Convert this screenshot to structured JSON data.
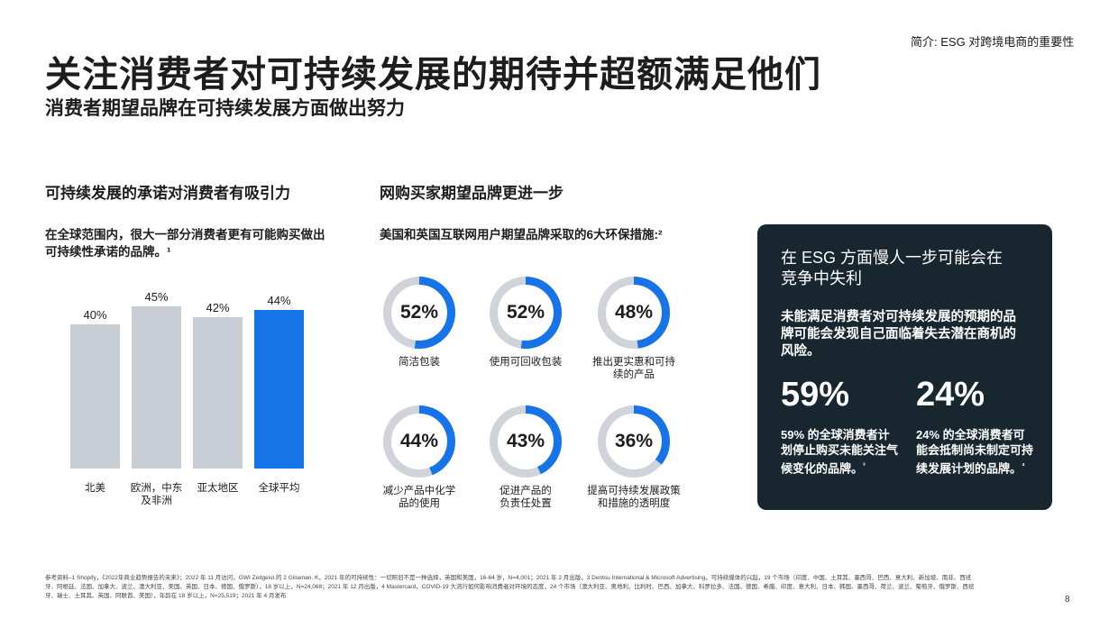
{
  "header": {
    "section_label": "简介: ESG 对跨境电商的重要性",
    "title": "关注消费者对可持续发展的期待并超额满足他们",
    "subtitle": "消费者期望品牌在可持续发展方面做出努力"
  },
  "left_column": {
    "heading": "可持续发展的承诺对消费者有吸引力",
    "description": "在全球范围内，很大一部分消费者更有可能购买做出可持续性承诺的品牌。¹"
  },
  "chart_data": {
    "type": "bar",
    "categories": [
      "北美",
      "欧洲，中东及非洲",
      "亚太地区",
      "全球平均"
    ],
    "category_lines": [
      [
        "北美"
      ],
      [
        "欧洲，中东",
        "及非洲"
      ],
      [
        "亚太地区"
      ],
      [
        "全球平均"
      ]
    ],
    "values": [
      40,
      45,
      42,
      44
    ],
    "value_labels": [
      "40%",
      "45%",
      "42%",
      "44%"
    ],
    "colors": [
      "#c9ced6",
      "#c9ced6",
      "#c9ced6",
      "#1773e8"
    ],
    "ylim": [
      0,
      50
    ]
  },
  "middle_column": {
    "heading": "网购买家期望品牌更进一步",
    "description": "美国和英国互联网用户期望品牌采取的6大环保措施:²",
    "donuts": [
      {
        "value": 52,
        "label_text": "52%",
        "lines": [
          "简洁包装"
        ]
      },
      {
        "value": 52,
        "label_text": "52%",
        "lines": [
          "使用可回收包装"
        ]
      },
      {
        "value": 48,
        "label_text": "48%",
        "lines": [
          "推出更实惠和可持",
          "续的产品"
        ]
      },
      {
        "value": 44,
        "label_text": "44%",
        "lines": [
          "减少产品中化学",
          "品的使用"
        ]
      },
      {
        "value": 43,
        "label_text": "43%",
        "lines": [
          "促进产品的",
          "负责任处置"
        ]
      },
      {
        "value": 36,
        "label_text": "36%",
        "lines": [
          "提高可持续发展政策",
          "和措施的透明度"
        ]
      }
    ],
    "ring_color": "#1773e8",
    "track_color": "#d0d4da"
  },
  "card": {
    "title": "在 ESG 方面慢人一步可能会在竞争中失利",
    "description": "未能满足消费者对可持续发展的预期的品牌可能会发现自己面临着失去潜在商机的风险。",
    "stat1_value": "59%",
    "stat1_text": "59% 的全球消费者计划停止购买未能关注气候变化的品牌。",
    "stat1_note": "³",
    "stat2_value": "24%",
    "stat2_text": "24% 的全球消费者可能会抵制尚未制定可持续发展计划的品牌。",
    "stat2_note": "⁴"
  },
  "footer": {
    "footnote": "参考资料–1 Shopify，《2022年商业趋势报告的未来》；2022 年 11 月访问，GWI Zeitgeist 的 2 Gilsenan, K，2021 年的可持续性：一切照旧不是一种选择，英国和美国，16-64 岁，N=4,001；2021 年 2 月出版，3 Dentsu International & Microsoft Advertising，可持续媒体的兴起，19 个市场（印度、中国、土耳其、墨西哥、巴西、意大利、新加坡、南非、西班牙、阿根廷、法国、加拿大、波兰、澳大利亚、美国、英国、日本、德国、俄罗斯），18 岁以上，N=24,068；2021 年 12 月出版，4 Mastercard，COVID-19 大流行如何影响消费者对环境的态度，24 个市场（澳大利亚、奥地利、比利时、巴西、加拿大、科罗拉多、法国、德国、希腊、印度、意大利、日本、韩国、墨西哥、荷兰、波兰、葡萄牙、俄罗斯、西班牙、瑞士、土耳其、英国、阿联酋、美国），年龄在 18 岁以上，N=25,519；2021 年 4 月发布",
    "page_number": "8"
  }
}
